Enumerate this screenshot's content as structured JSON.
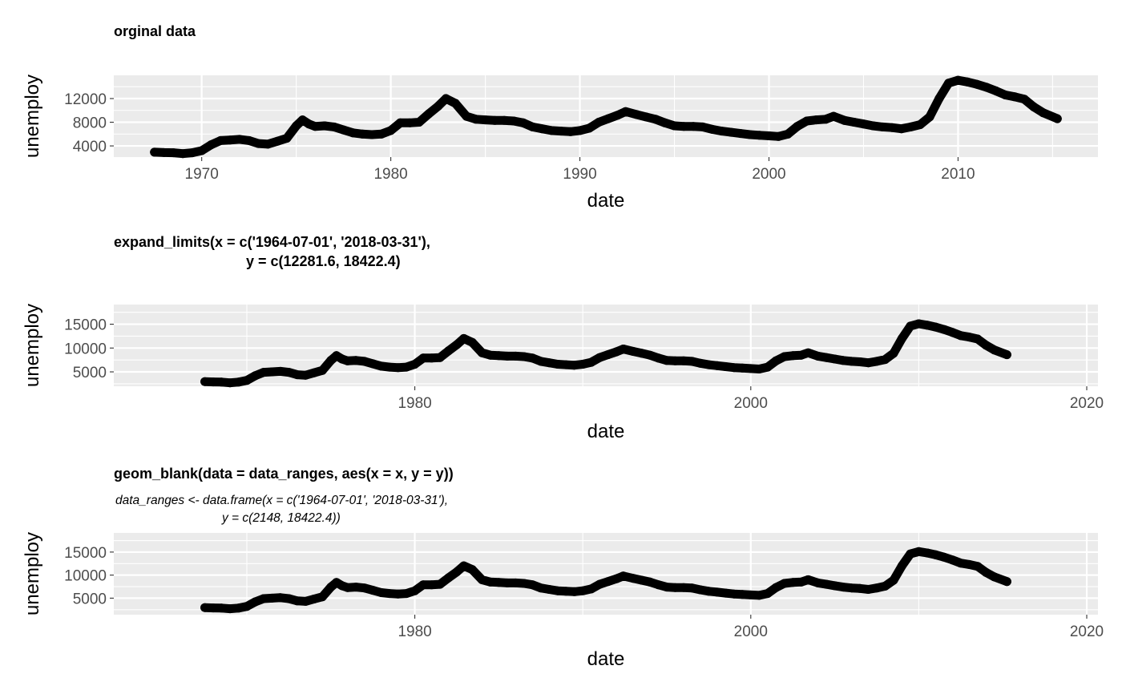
{
  "chart_data": [
    {
      "type": "scatter",
      "title": "orginal data",
      "subtitle": [],
      "xlabel": "date",
      "ylabel": "unemploy",
      "xlim": [
        "1967-07-01",
        "2015-04-01"
      ],
      "ylim": [
        2685,
        15352
      ],
      "xticks": [
        {
          "value": "1970-01-01",
          "label": "1970"
        },
        {
          "value": "1980-01-01",
          "label": "1980"
        },
        {
          "value": "1990-01-01",
          "label": "1990"
        },
        {
          "value": "2000-01-01",
          "label": "2000"
        },
        {
          "value": "2010-01-01",
          "label": "2010"
        }
      ],
      "yticks": [
        {
          "value": 4000,
          "label": "4000"
        },
        {
          "value": 8000,
          "label": "8000"
        },
        {
          "value": 12000,
          "label": "12000"
        }
      ],
      "grid": true,
      "series_ref": "unemploy"
    },
    {
      "type": "scatter",
      "title": "expand_limits(x = c('1964-07-01', '2018-03-31'),",
      "title_line2": "y = c(12281.6, 18422.4)",
      "subtitle": [],
      "xlabel": "date",
      "ylabel": "unemploy",
      "xlim": [
        "1964-07-01",
        "2018-03-31"
      ],
      "ylim": [
        2685,
        18422.4
      ],
      "xticks": [
        {
          "value": "1980-01-01",
          "label": "1980"
        },
        {
          "value": "2000-01-01",
          "label": "2000"
        },
        {
          "value": "2020-01-01",
          "label": "2020"
        }
      ],
      "yticks": [
        {
          "value": 5000,
          "label": "5000"
        },
        {
          "value": 10000,
          "label": "10000"
        },
        {
          "value": 15000,
          "label": "15000"
        }
      ],
      "grid": true,
      "series_ref": "unemploy"
    },
    {
      "type": "scatter",
      "title": "geom_blank(data = data_ranges, aes(x = x, y = y))",
      "title_line2": "",
      "subtitle": [
        "data_ranges <- data.frame(x = c('1964-07-01', '2018-03-31'),",
        "y = c(2148, 18422.4))"
      ],
      "xlabel": "date",
      "ylabel": "unemploy",
      "xlim": [
        "1964-07-01",
        "2018-03-31"
      ],
      "ylim": [
        2148,
        18422.4
      ],
      "xticks": [
        {
          "value": "1980-01-01",
          "label": "1980"
        },
        {
          "value": "2000-01-01",
          "label": "2000"
        },
        {
          "value": "2020-01-01",
          "label": "2020"
        }
      ],
      "yticks": [
        {
          "value": 5000,
          "label": "5000"
        },
        {
          "value": 10000,
          "label": "10000"
        },
        {
          "value": 15000,
          "label": "15000"
        }
      ],
      "grid": true,
      "series_ref": "unemploy"
    }
  ],
  "series_data": {
    "unemploy": {
      "name": "",
      "x": [
        "1967-07-01",
        "1968-01-01",
        "1968-07-01",
        "1969-01-01",
        "1969-07-01",
        "1970-01-01",
        "1970-07-01",
        "1971-01-01",
        "1971-07-01",
        "1972-01-01",
        "1972-07-01",
        "1973-01-01",
        "1973-07-01",
        "1974-01-01",
        "1974-07-01",
        "1975-01-01",
        "1975-05-01",
        "1975-09-01",
        "1976-01-01",
        "1976-07-01",
        "1977-01-01",
        "1977-07-01",
        "1978-01-01",
        "1978-07-01",
        "1979-01-01",
        "1979-07-01",
        "1980-01-01",
        "1980-07-01",
        "1981-01-01",
        "1981-07-01",
        "1982-01-01",
        "1982-07-01",
        "1982-12-01",
        "1983-06-01",
        "1984-01-01",
        "1984-07-01",
        "1985-01-01",
        "1985-07-01",
        "1986-01-01",
        "1986-07-01",
        "1987-01-01",
        "1987-07-01",
        "1988-01-01",
        "1988-07-01",
        "1989-01-01",
        "1989-07-01",
        "1990-01-01",
        "1990-07-01",
        "1991-01-01",
        "1991-07-01",
        "1992-01-01",
        "1992-06-01",
        "1993-01-01",
        "1993-07-01",
        "1994-01-01",
        "1994-07-01",
        "1995-01-01",
        "1995-07-01",
        "1996-01-01",
        "1996-07-01",
        "1997-01-01",
        "1997-07-01",
        "1998-01-01",
        "1998-07-01",
        "1999-01-01",
        "1999-07-01",
        "2000-01-01",
        "2000-07-01",
        "2001-01-01",
        "2001-07-01",
        "2002-01-01",
        "2002-07-01",
        "2003-01-01",
        "2003-06-01",
        "2004-01-01",
        "2004-07-01",
        "2005-01-01",
        "2005-07-01",
        "2006-01-01",
        "2006-07-01",
        "2007-01-01",
        "2007-07-01",
        "2008-01-01",
        "2008-07-01",
        "2009-01-01",
        "2009-07-01",
        "2010-01-01",
        "2010-07-01",
        "2011-01-01",
        "2011-07-01",
        "2012-01-01",
        "2012-07-01",
        "2013-01-01",
        "2013-07-01",
        "2014-01-01",
        "2014-07-01",
        "2015-04-01"
      ],
      "y": [
        2945,
        2878,
        2850,
        2700,
        2850,
        3200,
        4200,
        4900,
        5000,
        5100,
        4900,
        4400,
        4300,
        4800,
        5300,
        7400,
        8400,
        7700,
        7300,
        7400,
        7200,
        6700,
        6200,
        6000,
        5900,
        6000,
        6600,
        7900,
        7900,
        8000,
        9400,
        10700,
        12000,
        11200,
        9000,
        8500,
        8400,
        8300,
        8300,
        8200,
        7900,
        7200,
        6900,
        6600,
        6500,
        6400,
        6600,
        7000,
        8000,
        8600,
        9200,
        9800,
        9300,
        8900,
        8500,
        7900,
        7400,
        7300,
        7300,
        7200,
        6800,
        6500,
        6300,
        6100,
        5900,
        5800,
        5700,
        5600,
        6000,
        7300,
        8200,
        8400,
        8500,
        9000,
        8300,
        8000,
        7700,
        7400,
        7200,
        7100,
        6900,
        7200,
        7600,
        8900,
        12000,
        14600,
        15100,
        14800,
        14400,
        13900,
        13300,
        12600,
        12300,
        11900,
        10600,
        9600,
        8600
      ]
    }
  }
}
